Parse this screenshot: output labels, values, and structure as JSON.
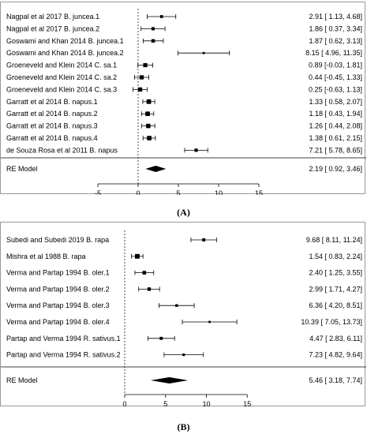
{
  "chart_data": [
    {
      "type": "forest",
      "panel_caption": "(A)",
      "x_ticks": [
        -5,
        0,
        5,
        10,
        15
      ],
      "xlim": [
        -5,
        15
      ],
      "null_line": 0,
      "studies": [
        {
          "label": "Nagpal et al 2017 B. juncea.1",
          "estimate": 2.91,
          "lower": 1.13,
          "upper": 4.68,
          "ci_text": "2.91 [ 1.13,  4.68]"
        },
        {
          "label": "Nagpal et al 2017 B. juncea.2",
          "estimate": 1.86,
          "lower": 0.37,
          "upper": 3.34,
          "ci_text": "1.86 [ 0.37,  3.34]"
        },
        {
          "label": "Goswami and Khan 2014 B. juncea.1",
          "estimate": 1.87,
          "lower": 0.62,
          "upper": 3.13,
          "ci_text": "1.87 [ 0.62,  3.13]"
        },
        {
          "label": "Goswami and Khan 2014 B. juncea.2",
          "estimate": 8.15,
          "lower": 4.96,
          "upper": 11.35,
          "ci_text": "8.15 [ 4.96, 11.35]"
        },
        {
          "label": "Groeneveld and Klein 2014 C. sa.1",
          "estimate": 0.89,
          "lower": -0.03,
          "upper": 1.81,
          "ci_text": "0.89 [-0.03,  1.81]"
        },
        {
          "label": "Groeneveld and Klein 2014 C. sa.2",
          "estimate": 0.44,
          "lower": -0.45,
          "upper": 1.33,
          "ci_text": "0.44 [-0.45,  1.33]"
        },
        {
          "label": "Groeneveld and Klein 2014 C. sa.3",
          "estimate": 0.25,
          "lower": -0.63,
          "upper": 1.13,
          "ci_text": "0.25 [-0.63,  1.13]"
        },
        {
          "label": "Garratt et al 2014 B. napus.1",
          "estimate": 1.33,
          "lower": 0.58,
          "upper": 2.07,
          "ci_text": "1.33 [ 0.58,  2.07]"
        },
        {
          "label": "Garratt et al 2014 B. napus.2",
          "estimate": 1.18,
          "lower": 0.43,
          "upper": 1.94,
          "ci_text": "1.18 [ 0.43,  1.94]"
        },
        {
          "label": "Garratt et al 2014 B. napus.3",
          "estimate": 1.26,
          "lower": 0.44,
          "upper": 2.08,
          "ci_text": "1.26 [ 0.44,  2.08]"
        },
        {
          "label": "Garratt et al 2014 B. napus.4",
          "estimate": 1.38,
          "lower": 0.61,
          "upper": 2.15,
          "ci_text": "1.38 [ 0.61,  2.15]"
        },
        {
          "label": "de Souza Rosa et al 2011 B. napus",
          "estimate": 7.21,
          "lower": 5.78,
          "upper": 8.65,
          "ci_text": "7.21 [ 5.78,  8.65]"
        }
      ],
      "summary": {
        "label": "RE Model",
        "estimate": 2.19,
        "lower": 0.92,
        "upper": 3.46,
        "ci_text": "2.19 [ 0.92,  3.46]"
      }
    },
    {
      "type": "forest",
      "panel_caption": "(B)",
      "x_ticks": [
        0,
        5,
        10,
        15
      ],
      "xlim": [
        0,
        15
      ],
      "null_line": 0,
      "studies": [
        {
          "label": "Subedi and Subedi 2019 B. rapa",
          "estimate": 9.68,
          "lower": 8.11,
          "upper": 11.24,
          "ci_text": "9.68 [ 8.11, 11.24]"
        },
        {
          "label": "Mishra et al 1988 B. rapa",
          "estimate": 1.54,
          "lower": 0.83,
          "upper": 2.24,
          "ci_text": "1.54 [ 0.83,  2.24]"
        },
        {
          "label": "Verma and Partap 1994 B. oler.1",
          "estimate": 2.4,
          "lower": 1.25,
          "upper": 3.55,
          "ci_text": "2.40 [ 1.25,  3.55]"
        },
        {
          "label": "Verma and Partap 1994 B. oler.2",
          "estimate": 2.99,
          "lower": 1.71,
          "upper": 4.27,
          "ci_text": "2.99 [ 1.71,  4.27]"
        },
        {
          "label": "Verma and Partap 1994 B. oler.3",
          "estimate": 6.36,
          "lower": 4.2,
          "upper": 8.51,
          "ci_text": "6.36 [ 4.20,  8.51]"
        },
        {
          "label": "Verma and Partap 1994 B. oler.4",
          "estimate": 10.39,
          "lower": 7.05,
          "upper": 13.73,
          "ci_text": "10.39 [ 7.05, 13.73]"
        },
        {
          "label": "Partap and Verma 1994 R. sativus.1",
          "estimate": 4.47,
          "lower": 2.83,
          "upper": 6.11,
          "ci_text": "4.47 [ 2.83,  6.11]"
        },
        {
          "label": "Partap and Verma 1994 R. sativus.2",
          "estimate": 7.23,
          "lower": 4.82,
          "upper": 9.64,
          "ci_text": "7.23 [ 4.82,  9.64]"
        }
      ],
      "summary": {
        "label": "RE Model",
        "estimate": 5.46,
        "lower": 3.18,
        "upper": 7.74,
        "ci_text": "5.46 [ 3.18,  7.74]"
      }
    }
  ]
}
